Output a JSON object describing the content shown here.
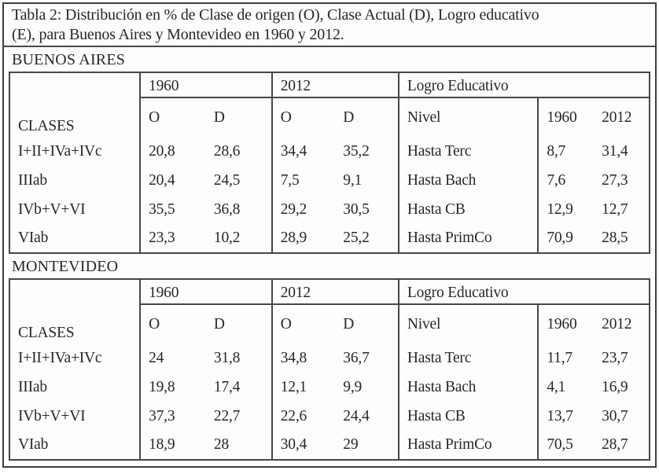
{
  "title": {
    "line1": "Tabla 2: Distribución en % de Clase de origen (O), Clase Actual (D), Logro educativo",
    "line2": "(E), para Buenos Aires y Montevideo en 1960 y 2012."
  },
  "table_header": {
    "clases": "CLASES",
    "year_1960": "1960",
    "year_2012": "2012",
    "origin": "O",
    "destination": "D",
    "logro": "Logro Educativo",
    "nivel": "Nivel",
    "logro_1960": "1960",
    "logro_2012": "2012"
  },
  "sections": [
    {
      "name": "BUENOS AIRES",
      "class_rows": [
        {
          "label": "I+II+IVa+IVc",
          "o1960": "20,8",
          "d1960": "28,6",
          "o2012": "34,4",
          "d2012": "35,2"
        },
        {
          "label": "IIIab",
          "o1960": "20,4",
          "d1960": "24,5",
          "o2012": "7,5",
          "d2012": "9,1"
        },
        {
          "label": "IVb+V+VI",
          "o1960": "35,5",
          "d1960": "36,8",
          "o2012": "29,2",
          "d2012": "30,5"
        },
        {
          "label": "VIab",
          "o1960": "23,3",
          "d1960": "10,2",
          "o2012": "28,9",
          "d2012": "25,2"
        }
      ],
      "logro_rows": [
        {
          "nivel": "Hasta Terc",
          "v1960": "8,7",
          "v2012": "31,4"
        },
        {
          "nivel": "Hasta Bach",
          "v1960": "7,6",
          "v2012": "27,3"
        },
        {
          "nivel": "Hasta CB",
          "v1960": "12,9",
          "v2012": "12,7"
        },
        {
          "nivel": "Hasta PrimCo",
          "v1960": "70,9",
          "v2012": "28,5"
        }
      ]
    },
    {
      "name": "MONTEVIDEO",
      "class_rows": [
        {
          "label": "I+II+IVa+IVc",
          "o1960": "24",
          "d1960": "31,8",
          "o2012": "34,8",
          "d2012": "36,7"
        },
        {
          "label": "IIIab",
          "o1960": "19,8",
          "d1960": "17,4",
          "o2012": "12,1",
          "d2012": "9,9"
        },
        {
          "label": "IVb+V+VI",
          "o1960": "37,3",
          "d1960": "22,7",
          "o2012": "22,6",
          "d2012": "24,4"
        },
        {
          "label": "VIab",
          "o1960": "18,9",
          "d1960": "28",
          "o2012": "30,4",
          "d2012": "29"
        }
      ],
      "logro_rows": [
        {
          "nivel": "Hasta Terc",
          "v1960": "11,7",
          "v2012": "23,7"
        },
        {
          "nivel": "Hasta Bach",
          "v1960": "4,1",
          "v2012": "16,9"
        },
        {
          "nivel": "Hasta CB",
          "v1960": "13,7",
          "v2012": "30,7"
        },
        {
          "nivel": "Hasta PrimCo",
          "v1960": "70,5",
          "v2012": "28,7"
        }
      ]
    }
  ]
}
